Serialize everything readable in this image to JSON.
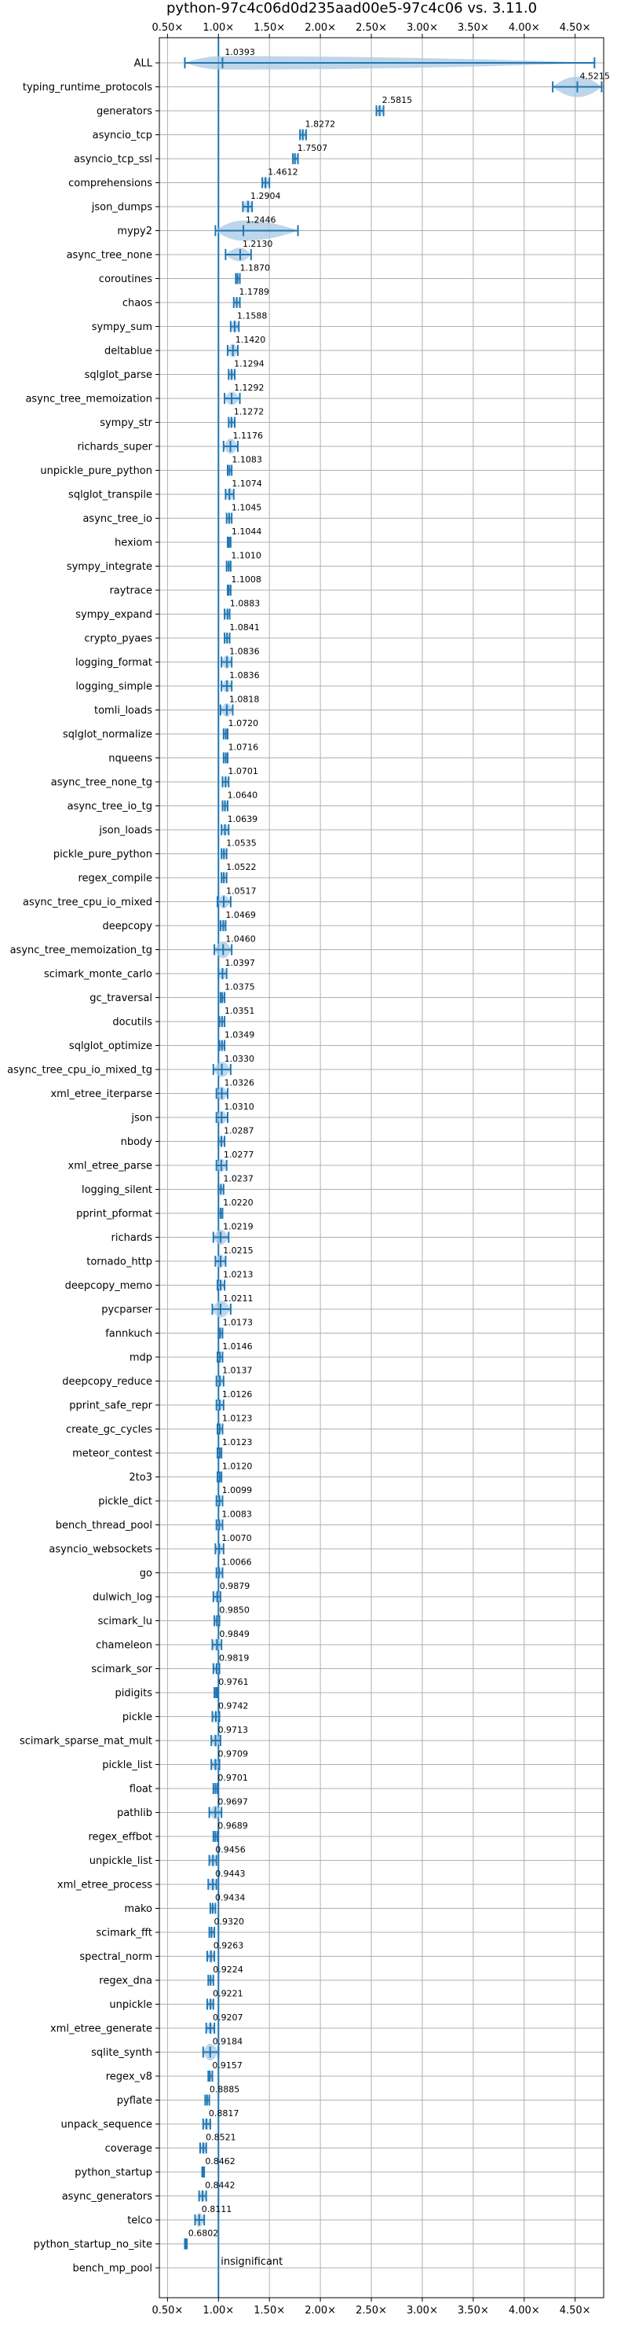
{
  "chart_data": {
    "type": "violin",
    "title": "python-97c4c06d0d235aad00e5-97c4c06 vs. 3.11.0",
    "xlabel": "",
    "ylabel": "",
    "xlim": [
      0.42,
      4.78
    ],
    "x_ticks": [
      0.5,
      1.0,
      1.5,
      2.0,
      2.5,
      3.0,
      3.5,
      4.0,
      4.5
    ],
    "x_tick_labels": [
      "0.50×",
      "1.00×",
      "1.50×",
      "2.00×",
      "2.50×",
      "3.00×",
      "3.50×",
      "4.00×",
      "4.50×"
    ],
    "x_ticks_top_and_bottom": true,
    "grid": true,
    "reference_line": 1.0,
    "colors": {
      "violin": "#1f77b4",
      "fill": "#a9c8e3",
      "refline": "#1f77b4",
      "grid": "#b0b0b0"
    },
    "insignificant_note": "insignificant",
    "categories": [
      "ALL",
      "typing_runtime_protocols",
      "generators",
      "asyncio_tcp",
      "asyncio_tcp_ssl",
      "comprehensions",
      "json_dumps",
      "mypy2",
      "async_tree_none",
      "coroutines",
      "chaos",
      "sympy_sum",
      "deltablue",
      "sqlglot_parse",
      "async_tree_memoization",
      "sympy_str",
      "richards_super",
      "unpickle_pure_python",
      "sqlglot_transpile",
      "async_tree_io",
      "hexiom",
      "sympy_integrate",
      "raytrace",
      "sympy_expand",
      "crypto_pyaes",
      "logging_format",
      "logging_simple",
      "tomli_loads",
      "sqlglot_normalize",
      "nqueens",
      "async_tree_none_tg",
      "async_tree_io_tg",
      "json_loads",
      "pickle_pure_python",
      "regex_compile",
      "async_tree_cpu_io_mixed",
      "deepcopy",
      "async_tree_memoization_tg",
      "scimark_monte_carlo",
      "gc_traversal",
      "docutils",
      "sqlglot_optimize",
      "async_tree_cpu_io_mixed_tg",
      "xml_etree_iterparse",
      "json",
      "nbody",
      "xml_etree_parse",
      "logging_silent",
      "pprint_pformat",
      "richards",
      "tornado_http",
      "deepcopy_memo",
      "pycparser",
      "fannkuch",
      "mdp",
      "deepcopy_reduce",
      "pprint_safe_repr",
      "create_gc_cycles",
      "meteor_contest",
      "2to3",
      "pickle_dict",
      "bench_thread_pool",
      "asyncio_websockets",
      "go",
      "dulwich_log",
      "scimark_lu",
      "chameleon",
      "scimark_sor",
      "pidigits",
      "pickle",
      "scimark_sparse_mat_mult",
      "pickle_list",
      "float",
      "pathlib",
      "regex_effbot",
      "unpickle_list",
      "xml_etree_process",
      "mako",
      "scimark_fft",
      "spectral_norm",
      "regex_dna",
      "unpickle",
      "xml_etree_generate",
      "sqlite_synth",
      "regex_v8",
      "pyflate",
      "unpack_sequence",
      "coverage",
      "python_startup",
      "async_generators",
      "telco",
      "python_startup_no_site",
      "bench_mp_pool"
    ],
    "values": [
      1.0393,
      4.5215,
      2.5815,
      1.8272,
      1.7507,
      1.4612,
      1.2904,
      1.2446,
      1.213,
      1.187,
      1.1789,
      1.1588,
      1.142,
      1.1294,
      1.1292,
      1.1272,
      1.1176,
      1.1083,
      1.1074,
      1.1045,
      1.1044,
      1.101,
      1.1008,
      1.0883,
      1.0841,
      1.0836,
      1.0836,
      1.0818,
      1.072,
      1.0716,
      1.0701,
      1.064,
      1.0639,
      1.0535,
      1.0522,
      1.0517,
      1.0469,
      1.046,
      1.0397,
      1.0375,
      1.0351,
      1.0349,
      1.033,
      1.0326,
      1.031,
      1.0287,
      1.0277,
      1.0237,
      1.022,
      1.0219,
      1.0215,
      1.0213,
      1.0211,
      1.0173,
      1.0146,
      1.0137,
      1.0126,
      1.0123,
      1.0123,
      1.012,
      1.0099,
      1.0083,
      1.007,
      1.0066,
      0.9879,
      0.985,
      0.9849,
      0.9819,
      0.9761,
      0.9742,
      0.9713,
      0.9709,
      0.9701,
      0.9697,
      0.9689,
      0.9456,
      0.9443,
      0.9434,
      0.932,
      0.9263,
      0.9224,
      0.9221,
      0.9207,
      0.9184,
      0.9157,
      0.8885,
      0.8817,
      0.8521,
      0.8462,
      0.8442,
      0.8111,
      0.6802,
      null
    ],
    "value_labels": [
      "1.0393",
      "4.5215",
      "2.5815",
      "1.8272",
      "1.7507",
      "1.4612",
      "1.2904",
      "1.2446",
      "1.2130",
      "1.1870",
      "1.1789",
      "1.1588",
      "1.1420",
      "1.1294",
      "1.1292",
      "1.1272",
      "1.1176",
      "1.1083",
      "1.1074",
      "1.1045",
      "1.1044",
      "1.1010",
      "1.1008",
      "1.0883",
      "1.0841",
      "1.0836",
      "1.0836",
      "1.0818",
      "1.0720",
      "1.0716",
      "1.0701",
      "1.0640",
      "1.0639",
      "1.0535",
      "1.0522",
      "1.0517",
      "1.0469",
      "1.0460",
      "1.0397",
      "1.0375",
      "1.0351",
      "1.0349",
      "1.0330",
      "1.0326",
      "1.0310",
      "1.0287",
      "1.0277",
      "1.0237",
      "1.0220",
      "1.0219",
      "1.0215",
      "1.0213",
      "1.0211",
      "1.0173",
      "1.0146",
      "1.0137",
      "1.0126",
      "1.0123",
      "1.0123",
      "1.0120",
      "1.0099",
      "1.0083",
      "1.0070",
      "1.0066",
      "0.9879",
      "0.9850",
      "0.9849",
      "0.9819",
      "0.9761",
      "0.9742",
      "0.9713",
      "0.9709",
      "0.9701",
      "0.9697",
      "0.9689",
      "0.9456",
      "0.9443",
      "0.9434",
      "0.9320",
      "0.9263",
      "0.9224",
      "0.9221",
      "0.9207",
      "0.9184",
      "0.9157",
      "0.8885",
      "0.8817",
      "0.8521",
      "0.8462",
      "0.8442",
      "0.8111",
      "0.6802",
      ""
    ],
    "ranges": [
      [
        0.67,
        4.69
      ],
      [
        4.28,
        4.76
      ],
      [
        2.55,
        2.62
      ],
      [
        1.8,
        1.86
      ],
      [
        1.73,
        1.78
      ],
      [
        1.43,
        1.5
      ],
      [
        1.24,
        1.33
      ],
      [
        0.97,
        1.78
      ],
      [
        1.07,
        1.32
      ],
      [
        1.17,
        1.21
      ],
      [
        1.15,
        1.21
      ],
      [
        1.12,
        1.2
      ],
      [
        1.09,
        1.19
      ],
      [
        1.1,
        1.16
      ],
      [
        1.06,
        1.21
      ],
      [
        1.1,
        1.16
      ],
      [
        1.05,
        1.19
      ],
      [
        1.09,
        1.13
      ],
      [
        1.07,
        1.15
      ],
      [
        1.08,
        1.13
      ],
      [
        1.09,
        1.12
      ],
      [
        1.08,
        1.12
      ],
      [
        1.09,
        1.12
      ],
      [
        1.06,
        1.11
      ],
      [
        1.06,
        1.11
      ],
      [
        1.03,
        1.13
      ],
      [
        1.03,
        1.13
      ],
      [
        1.02,
        1.14
      ],
      [
        1.05,
        1.09
      ],
      [
        1.05,
        1.09
      ],
      [
        1.04,
        1.1
      ],
      [
        1.04,
        1.09
      ],
      [
        1.03,
        1.1
      ],
      [
        1.03,
        1.08
      ],
      [
        1.03,
        1.08
      ],
      [
        0.99,
        1.12
      ],
      [
        1.02,
        1.07
      ],
      [
        0.96,
        1.13
      ],
      [
        1.0,
        1.08
      ],
      [
        1.02,
        1.06
      ],
      [
        1.01,
        1.06
      ],
      [
        1.01,
        1.06
      ],
      [
        0.95,
        1.12
      ],
      [
        0.98,
        1.09
      ],
      [
        0.98,
        1.09
      ],
      [
        1.0,
        1.06
      ],
      [
        0.98,
        1.08
      ],
      [
        1.0,
        1.05
      ],
      [
        1.0,
        1.04
      ],
      [
        0.95,
        1.1
      ],
      [
        0.97,
        1.07
      ],
      [
        0.99,
        1.06
      ],
      [
        0.94,
        1.12
      ],
      [
        1.0,
        1.04
      ],
      [
        0.99,
        1.04
      ],
      [
        0.98,
        1.05
      ],
      [
        0.98,
        1.05
      ],
      [
        0.99,
        1.04
      ],
      [
        0.99,
        1.03
      ],
      [
        0.99,
        1.03
      ],
      [
        0.98,
        1.04
      ],
      [
        0.98,
        1.04
      ],
      [
        0.97,
        1.05
      ],
      [
        0.98,
        1.04
      ],
      [
        0.95,
        1.02
      ],
      [
        0.96,
        1.01
      ],
      [
        0.94,
        1.03
      ],
      [
        0.95,
        1.01
      ],
      [
        0.96,
        0.99
      ],
      [
        0.94,
        1.01
      ],
      [
        0.93,
        1.02
      ],
      [
        0.93,
        1.01
      ],
      [
        0.95,
        0.99
      ],
      [
        0.91,
        1.03
      ],
      [
        0.95,
        0.99
      ],
      [
        0.91,
        0.98
      ],
      [
        0.9,
        0.98
      ],
      [
        0.92,
        0.97
      ],
      [
        0.91,
        0.96
      ],
      [
        0.89,
        0.96
      ],
      [
        0.9,
        0.95
      ],
      [
        0.89,
        0.95
      ],
      [
        0.88,
        0.96
      ],
      [
        0.85,
        1.0
      ],
      [
        0.9,
        0.94
      ],
      [
        0.87,
        0.91
      ],
      [
        0.85,
        0.92
      ],
      [
        0.82,
        0.88
      ],
      [
        0.84,
        0.86
      ],
      [
        0.81,
        0.88
      ],
      [
        0.77,
        0.86
      ],
      [
        0.67,
        0.69
      ],
      [
        1.0,
        1.0
      ]
    ],
    "widths": [
      0.6,
      1.0,
      0.45,
      0.45,
      0.35,
      0.5,
      0.6,
      1.0,
      0.6,
      0.3,
      0.4,
      0.55,
      0.6,
      0.45,
      0.6,
      0.45,
      0.7,
      0.3,
      0.55,
      0.5,
      0.35,
      0.4,
      0.3,
      0.45,
      0.45,
      0.6,
      0.55,
      0.6,
      0.4,
      0.4,
      0.45,
      0.45,
      0.5,
      0.45,
      0.45,
      0.6,
      0.45,
      0.8,
      0.5,
      0.3,
      0.4,
      0.4,
      0.7,
      0.6,
      0.6,
      0.5,
      0.6,
      0.35,
      0.4,
      0.7,
      0.6,
      0.45,
      0.8,
      0.3,
      0.35,
      0.45,
      0.45,
      0.35,
      0.3,
      0.3,
      0.35,
      0.35,
      0.45,
      0.4,
      0.45,
      0.45,
      0.55,
      0.45,
      0.3,
      0.45,
      0.55,
      0.5,
      0.4,
      0.6,
      0.35,
      0.55,
      0.55,
      0.35,
      0.45,
      0.6,
      0.35,
      0.45,
      0.5,
      0.8,
      0.35,
      0.3,
      0.5,
      0.5,
      0.3,
      0.5,
      0.65,
      0.3,
      0.0
    ]
  }
}
